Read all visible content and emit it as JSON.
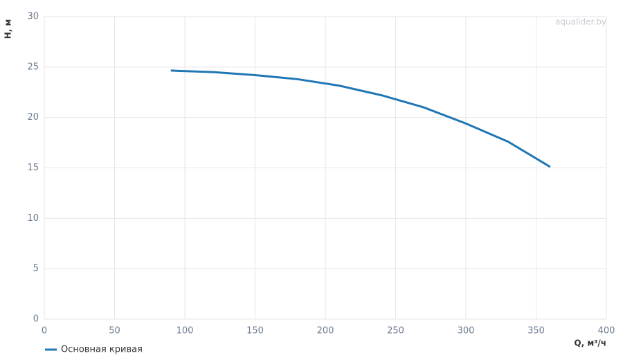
{
  "chart_data": {
    "type": "line",
    "watermark": "aqualider.by",
    "x_label": "Q, м³/ч",
    "y_label": "H, м",
    "x": [
      90,
      120,
      150,
      180,
      210,
      240,
      270,
      300,
      330,
      360
    ],
    "series": [
      {
        "name": "Основная кривая",
        "color": "#1f77b4",
        "values": [
          24.65,
          24.5,
          24.2,
          23.8,
          23.15,
          22.2,
          21.0,
          19.4,
          17.6,
          15.1
        ]
      }
    ],
    "xlim": [
      0,
      400
    ],
    "xticks": [
      0,
      50,
      100,
      150,
      200,
      250,
      300,
      350,
      400
    ],
    "ylim": [
      0,
      30
    ],
    "yticks": [
      0,
      5,
      10,
      15,
      20,
      25,
      30
    ],
    "grid": true,
    "legend": "bottom-left"
  }
}
